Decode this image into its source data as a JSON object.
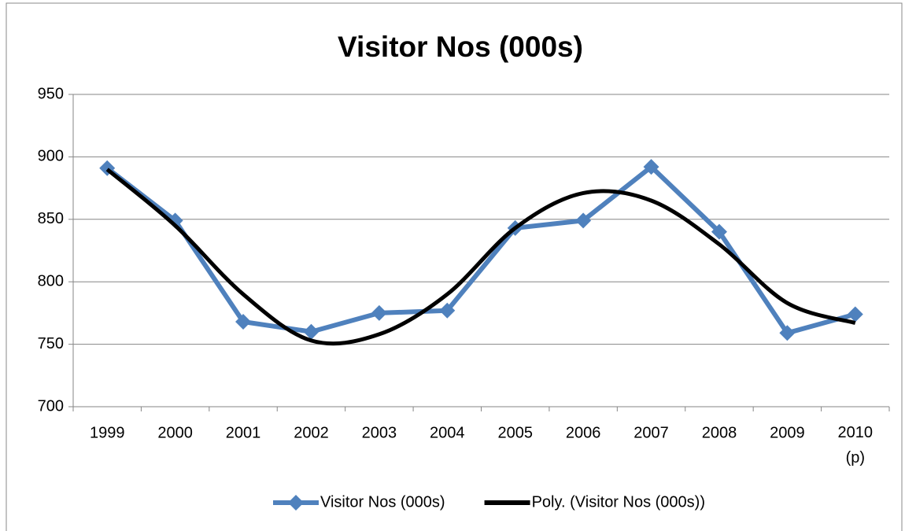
{
  "chart_data": {
    "type": "line",
    "title": "Visitor Nos (000s)",
    "categories": [
      "1999",
      "2000",
      "2001",
      "2002",
      "2003",
      "2004",
      "2005",
      "2006",
      "2007",
      "2008",
      "2009",
      "2010\n(p)"
    ],
    "series": [
      {
        "name": "Visitor Nos (000s)",
        "color": "#4f81bd",
        "marker": "diamond",
        "values": [
          891,
          849,
          768,
          760,
          775,
          777,
          843,
          849,
          892,
          840,
          759,
          774
        ]
      },
      {
        "name": "Poly. (Visitor Nos (000s))",
        "color": "#000000",
        "smooth": true,
        "values": [
          890,
          845,
          790,
          753,
          758,
          790,
          843,
          871,
          865,
          830,
          783,
          767
        ]
      }
    ],
    "ylim": [
      700,
      950
    ],
    "yticks": [
      700,
      750,
      800,
      850,
      900,
      950
    ],
    "grid": true,
    "legend": "bottom"
  }
}
